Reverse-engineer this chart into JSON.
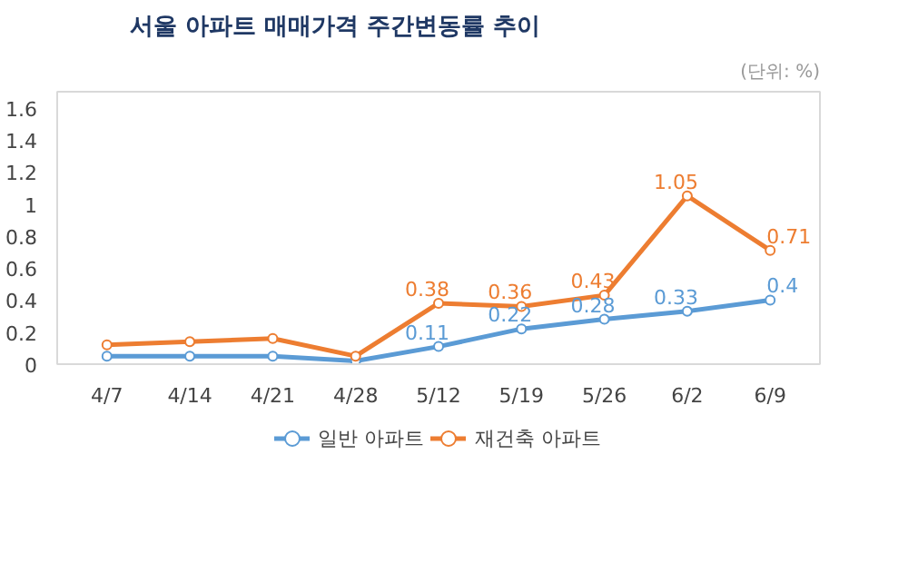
{
  "chart_data": {
    "type": "line",
    "title": "서울 아파트 매매가격 주간변동률 추이",
    "annotations": [
      "(단위: %)"
    ],
    "categories": [
      "4/7",
      "4/14",
      "4/21",
      "4/28",
      "5/12",
      "5/19",
      "5/26",
      "6/2",
      "6/9"
    ],
    "series": [
      {
        "name": "일반 아파트",
        "color": "#5b9bd5",
        "values": [
          0.05,
          0.05,
          0.05,
          0.02,
          0.11,
          0.22,
          0.28,
          0.33,
          0.4
        ],
        "value_labels": [
          null,
          null,
          null,
          null,
          "0.11",
          "0.22",
          "0.28",
          "0.33",
          "0.4"
        ]
      },
      {
        "name": "재건축 아파트",
        "color": "#ed7d31",
        "values": [
          0.12,
          0.14,
          0.16,
          0.05,
          0.38,
          0.36,
          0.43,
          1.05,
          0.71
        ],
        "value_labels": [
          null,
          null,
          null,
          null,
          "0.38",
          "0.36",
          "0.43",
          "1.05",
          "0.71"
        ]
      }
    ],
    "ylim": [
      0,
      1.7
    ],
    "yticks": [
      0,
      0.2,
      0.4,
      0.6,
      0.8,
      1,
      1.2,
      1.4,
      1.6
    ],
    "grid": false,
    "legend": "bottom",
    "marker": "circle",
    "line_style": "solid"
  }
}
